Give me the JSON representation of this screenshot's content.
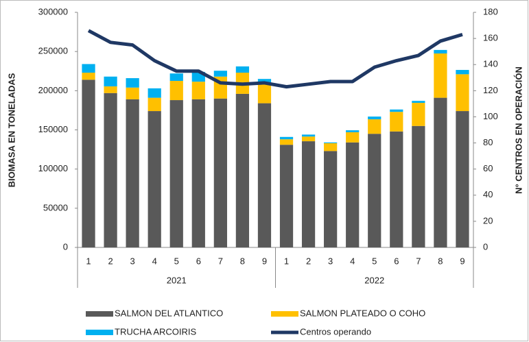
{
  "chart_data": {
    "type": "bar",
    "stacked": true,
    "ylabel": "BIOMASA EN TONELADAS",
    "y2label": "N° CENTROS EN OPERACIÓN",
    "categories": [
      "1",
      "2",
      "3",
      "4",
      "5",
      "6",
      "7",
      "8",
      "9",
      "1",
      "2",
      "3",
      "4",
      "5",
      "6",
      "7",
      "8",
      "9"
    ],
    "groups": [
      "2021",
      "2022"
    ],
    "ylim": [
      0,
      300000
    ],
    "yticks": [
      0,
      50000,
      100000,
      150000,
      200000,
      250000,
      300000
    ],
    "y2lim": [
      0,
      180
    ],
    "y2ticks": [
      0,
      20,
      40,
      60,
      80,
      100,
      120,
      140,
      160,
      180
    ],
    "series": [
      {
        "name": "SALMON DEL ATLANTICO",
        "color": "#595959",
        "values": [
          214000,
          197000,
          189000,
          174000,
          188000,
          189000,
          190000,
          196000,
          184000,
          131000,
          135500,
          123000,
          134000,
          145000,
          148000,
          155000,
          191000,
          174000
        ]
      },
      {
        "name": "SALMON PLATEADO O COHO",
        "color": "#ffc000",
        "values": [
          9000,
          8500,
          15000,
          17000,
          24500,
          22500,
          28000,
          27000,
          26000,
          7000,
          6000,
          10000,
          13000,
          18500,
          25000,
          29500,
          56500,
          47000
        ]
      },
      {
        "name": "TRUCHA ARCOIRIS",
        "color": "#00b0f0",
        "values": [
          11000,
          12500,
          12000,
          12000,
          9500,
          12500,
          7500,
          8000,
          5000,
          3000,
          2500,
          1000,
          2500,
          3500,
          3000,
          2500,
          4500,
          5500
        ]
      },
      {
        "name": "Centros operando",
        "color": "#1f3864",
        "type": "line",
        "axis": "y2",
        "values": [
          166,
          157,
          155,
          143,
          135,
          135,
          126,
          125,
          126,
          123,
          125,
          127,
          127,
          138,
          143,
          147,
          158,
          163
        ]
      }
    ]
  }
}
